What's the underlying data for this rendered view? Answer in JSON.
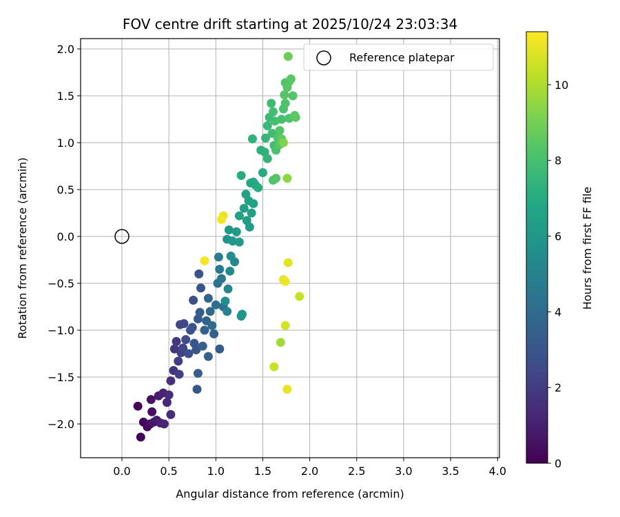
{
  "chart_data": {
    "type": "scatter",
    "title": "FOV centre drift starting at 2025/10/24 23:03:34",
    "xlabel": "Angular distance from reference (arcmin)",
    "ylabel": "Rotation from reference (arcmin)",
    "xlim": [
      -0.44,
      4.02
    ],
    "ylim": [
      -2.36,
      2.11
    ],
    "x_ticks": [
      0.0,
      0.5,
      1.0,
      1.5,
      2.0,
      2.5,
      3.0,
      3.5,
      4.0
    ],
    "x_tick_labels": [
      "0.0",
      "0.5",
      "1.0",
      "1.5",
      "2.0",
      "2.5",
      "3.0",
      "3.5",
      "4.0"
    ],
    "y_ticks": [
      2.0,
      1.5,
      1.0,
      0.5,
      0.0,
      -0.5,
      -1.0,
      -1.5,
      -2.0
    ],
    "y_tick_labels": [
      "2.0",
      "1.5",
      "1.0",
      "0.5",
      "0.0",
      "−0.5",
      "−1.0",
      "−1.5",
      "−2.0"
    ],
    "grid": true,
    "legend": {
      "label": "Reference platepar",
      "placement": "top-right"
    },
    "reference": {
      "x": 0.0,
      "y": 0.0
    },
    "colorbar": {
      "label": "Hours from first FF file",
      "range": [
        0,
        11.4
      ],
      "ticks": [
        0,
        2,
        4,
        6,
        8,
        10
      ],
      "tick_labels": [
        "0",
        "2",
        "4",
        "6",
        "8",
        "10"
      ],
      "colormap": "viridis"
    },
    "points": [
      {
        "x": 0.2,
        "y": -2.14,
        "h": 0.1
      },
      {
        "x": 0.17,
        "y": -1.81,
        "h": 0.1
      },
      {
        "x": 0.23,
        "y": -1.98,
        "h": 0.2
      },
      {
        "x": 0.27,
        "y": -2.03,
        "h": 0.3
      },
      {
        "x": 0.3,
        "y": -2.0,
        "h": 0.4
      },
      {
        "x": 0.32,
        "y": -1.87,
        "h": 0.5
      },
      {
        "x": 0.31,
        "y": -1.74,
        "h": 0.6
      },
      {
        "x": 0.34,
        "y": -1.98,
        "h": 0.7
      },
      {
        "x": 0.37,
        "y": -1.96,
        "h": 0.8
      },
      {
        "x": 0.39,
        "y": -1.7,
        "h": 0.9
      },
      {
        "x": 0.41,
        "y": -1.99,
        "h": 1.0
      },
      {
        "x": 0.44,
        "y": -1.67,
        "h": 1.1
      },
      {
        "x": 0.45,
        "y": -2.0,
        "h": 1.2
      },
      {
        "x": 0.48,
        "y": -1.77,
        "h": 1.3
      },
      {
        "x": 0.5,
        "y": -1.69,
        "h": 1.4
      },
      {
        "x": 0.52,
        "y": -1.9,
        "h": 1.5
      },
      {
        "x": 0.52,
        "y": -1.54,
        "h": 1.6
      },
      {
        "x": 0.55,
        "y": -1.43,
        "h": 1.7
      },
      {
        "x": 0.56,
        "y": -1.2,
        "h": 1.8
      },
      {
        "x": 0.58,
        "y": -1.12,
        "h": 1.9
      },
      {
        "x": 0.6,
        "y": -1.33,
        "h": 2.0
      },
      {
        "x": 0.61,
        "y": -1.47,
        "h": 2.1
      },
      {
        "x": 0.63,
        "y": -1.24,
        "h": 2.2
      },
      {
        "x": 0.65,
        "y": -1.19,
        "h": 2.3
      },
      {
        "x": 0.62,
        "y": -0.94,
        "h": 2.4
      },
      {
        "x": 0.66,
        "y": -0.93,
        "h": 2.5
      },
      {
        "x": 0.68,
        "y": -1.1,
        "h": 2.6
      },
      {
        "x": 0.71,
        "y": -1.25,
        "h": 2.7
      },
      {
        "x": 0.73,
        "y": -1.0,
        "h": 2.8
      },
      {
        "x": 0.75,
        "y": -0.97,
        "h": 2.9
      },
      {
        "x": 0.77,
        "y": -1.14,
        "h": 3.0
      },
      {
        "x": 0.79,
        "y": -1.21,
        "h": 3.1
      },
      {
        "x": 0.81,
        "y": -0.88,
        "h": 3.2
      },
      {
        "x": 0.83,
        "y": -0.81,
        "h": 3.3
      },
      {
        "x": 0.76,
        "y": -0.68,
        "h": 2.8
      },
      {
        "x": 0.82,
        "y": -0.4,
        "h": 2.9
      },
      {
        "x": 0.84,
        "y": -0.55,
        "h": 3.0
      },
      {
        "x": 0.8,
        "y": -1.63,
        "h": 3.1
      },
      {
        "x": 0.81,
        "y": -1.46,
        "h": 3.3
      },
      {
        "x": 0.86,
        "y": -1.17,
        "h": 3.4
      },
      {
        "x": 0.88,
        "y": -1.0,
        "h": 3.5
      },
      {
        "x": 0.9,
        "y": -0.9,
        "h": 3.6
      },
      {
        "x": 0.92,
        "y": -0.66,
        "h": 3.7
      },
      {
        "x": 0.94,
        "y": -0.8,
        "h": 3.8
      },
      {
        "x": 0.96,
        "y": -0.95,
        "h": 3.9
      },
      {
        "x": 0.92,
        "y": -1.28,
        "h": 3.6
      },
      {
        "x": 0.98,
        "y": -1.04,
        "h": 3.4
      },
      {
        "x": 1.04,
        "y": -1.2,
        "h": 3.2
      },
      {
        "x": 1.0,
        "y": -0.73,
        "h": 4.2
      },
      {
        "x": 1.02,
        "y": -0.5,
        "h": 4.4
      },
      {
        "x": 1.04,
        "y": -0.35,
        "h": 4.6
      },
      {
        "x": 1.03,
        "y": -0.22,
        "h": 4.8
      },
      {
        "x": 1.06,
        "y": -0.45,
        "h": 4.5
      },
      {
        "x": 1.08,
        "y": -0.75,
        "h": 4.3
      },
      {
        "x": 1.1,
        "y": -0.69,
        "h": 5.6
      },
      {
        "x": 1.12,
        "y": -0.8,
        "h": 5.0
      },
      {
        "x": 1.13,
        "y": -0.56,
        "h": 5.2
      },
      {
        "x": 1.15,
        "y": -0.37,
        "h": 5.4
      },
      {
        "x": 1.16,
        "y": -0.21,
        "h": 5.6
      },
      {
        "x": 1.12,
        "y": -0.03,
        "h": 5.8
      },
      {
        "x": 1.14,
        "y": 0.07,
        "h": 6.0
      },
      {
        "x": 1.18,
        "y": -0.05,
        "h": 6.1
      },
      {
        "x": 1.2,
        "y": -0.27,
        "h": 5.2
      },
      {
        "x": 1.22,
        "y": 0.05,
        "h": 6.2
      },
      {
        "x": 1.25,
        "y": -0.06,
        "h": 6.2
      },
      {
        "x": 1.27,
        "y": -0.85,
        "h": 5.8
      },
      {
        "x": 1.28,
        "y": -0.83,
        "h": 6.0
      },
      {
        "x": 1.25,
        "y": 0.22,
        "h": 6.5
      },
      {
        "x": 1.3,
        "y": 0.3,
        "h": 6.4
      },
      {
        "x": 1.32,
        "y": 0.45,
        "h": 6.6
      },
      {
        "x": 1.35,
        "y": 0.38,
        "h": 6.5
      },
      {
        "x": 1.33,
        "y": 0.17,
        "h": 6.3
      },
      {
        "x": 1.36,
        "y": 0.1,
        "h": 6.3
      },
      {
        "x": 1.38,
        "y": 0.25,
        "h": 6.5
      },
      {
        "x": 1.4,
        "y": 0.35,
        "h": 6.6
      },
      {
        "x": 1.37,
        "y": 0.57,
        "h": 6.8
      },
      {
        "x": 1.4,
        "y": 0.58,
        "h": 6.9
      },
      {
        "x": 1.42,
        "y": 0.55,
        "h": 6.8
      },
      {
        "x": 1.45,
        "y": 0.52,
        "h": 7.0
      },
      {
        "x": 1.27,
        "y": 0.65,
        "h": 7.0
      },
      {
        "x": 1.5,
        "y": 0.68,
        "h": 7.0
      },
      {
        "x": 1.39,
        "y": 1.04,
        "h": 7.3
      },
      {
        "x": 1.48,
        "y": 0.92,
        "h": 7.2
      },
      {
        "x": 1.52,
        "y": 0.9,
        "h": 7.3
      },
      {
        "x": 1.55,
        "y": 0.83,
        "h": 7.4
      },
      {
        "x": 1.53,
        "y": 1.05,
        "h": 7.5
      },
      {
        "x": 1.55,
        "y": 1.18,
        "h": 7.6
      },
      {
        "x": 1.57,
        "y": 1.27,
        "h": 7.7
      },
      {
        "x": 1.59,
        "y": 1.42,
        "h": 7.8
      },
      {
        "x": 1.61,
        "y": 1.33,
        "h": 7.9
      },
      {
        "x": 1.63,
        "y": 1.23,
        "h": 8.0
      },
      {
        "x": 1.6,
        "y": 1.1,
        "h": 7.8
      },
      {
        "x": 1.62,
        "y": 0.97,
        "h": 7.9
      },
      {
        "x": 1.64,
        "y": 0.92,
        "h": 8.1
      },
      {
        "x": 1.66,
        "y": 1.05,
        "h": 8.2
      },
      {
        "x": 1.68,
        "y": 1.13,
        "h": 8.3
      },
      {
        "x": 1.7,
        "y": 1.25,
        "h": 8.0
      },
      {
        "x": 1.72,
        "y": 1.36,
        "h": 8.1
      },
      {
        "x": 1.74,
        "y": 1.42,
        "h": 8.2
      },
      {
        "x": 1.73,
        "y": 1.51,
        "h": 8.3
      },
      {
        "x": 1.76,
        "y": 1.59,
        "h": 8.4
      },
      {
        "x": 1.78,
        "y": 1.65,
        "h": 8.3
      },
      {
        "x": 1.74,
        "y": 1.64,
        "h": 8.2
      },
      {
        "x": 1.8,
        "y": 1.68,
        "h": 8.4
      },
      {
        "x": 1.82,
        "y": 1.5,
        "h": 8.3
      },
      {
        "x": 1.78,
        "y": 1.26,
        "h": 8.2
      },
      {
        "x": 1.84,
        "y": 1.29,
        "h": 8.4
      },
      {
        "x": 1.85,
        "y": 1.27,
        "h": 8.5
      },
      {
        "x": 1.7,
        "y": 1.04,
        "h": 8.6
      },
      {
        "x": 1.72,
        "y": 1.0,
        "h": 9.2
      },
      {
        "x": 1.68,
        "y": 0.98,
        "h": 8.4
      },
      {
        "x": 1.64,
        "y": 0.62,
        "h": 8.3
      },
      {
        "x": 1.61,
        "y": 0.6,
        "h": 8.2
      },
      {
        "x": 1.76,
        "y": 0.62,
        "h": 9.5
      },
      {
        "x": 1.77,
        "y": 1.92,
        "h": 8.8
      },
      {
        "x": 1.06,
        "y": 0.18,
        "h": 11.2
      },
      {
        "x": 1.08,
        "y": 0.22,
        "h": 11.0
      },
      {
        "x": 0.88,
        "y": -0.26,
        "h": 11.3
      },
      {
        "x": 1.77,
        "y": -0.28,
        "h": 10.9
      },
      {
        "x": 1.72,
        "y": -0.46,
        "h": 11.0
      },
      {
        "x": 1.74,
        "y": -0.48,
        "h": 11.1
      },
      {
        "x": 1.89,
        "y": -0.64,
        "h": 10.4
      },
      {
        "x": 1.74,
        "y": -0.95,
        "h": 10.7
      },
      {
        "x": 1.69,
        "y": -1.13,
        "h": 9.8
      },
      {
        "x": 1.62,
        "y": -1.39,
        "h": 10.5
      },
      {
        "x": 1.76,
        "y": -1.63,
        "h": 11.0
      }
    ]
  }
}
